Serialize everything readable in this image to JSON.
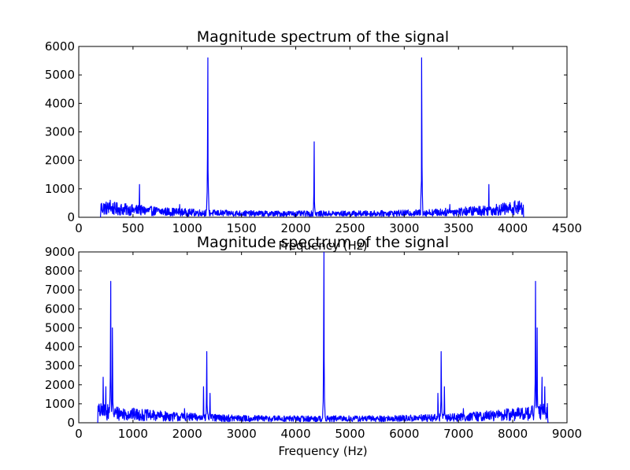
{
  "chart_data": [
    {
      "type": "line",
      "title": "Magnitude spectrum of the signal",
      "xlabel": "Frequency (Hz)",
      "ylabel": "",
      "xlim": [
        0,
        4500
      ],
      "ylim": [
        0,
        6000
      ],
      "xticks": [
        0,
        500,
        1000,
        1500,
        2000,
        2500,
        3000,
        3500,
        4000,
        4500
      ],
      "yticks": [
        0,
        1000,
        2000,
        3000,
        4000,
        5000,
        6000
      ],
      "grid": false,
      "series_color": "#0000ff",
      "x_range": [
        200,
        4100
      ],
      "noise": {
        "near_edges": 400,
        "middle": 150
      },
      "peaks": [
        {
          "x": 290,
          "y": 600
        },
        {
          "x": 560,
          "y": 1150
        },
        {
          "x": 930,
          "y": 450
        },
        {
          "x": 1190,
          "y": 5600
        },
        {
          "x": 2170,
          "y": 2650
        },
        {
          "x": 3160,
          "y": 5600
        },
        {
          "x": 3420,
          "y": 450
        },
        {
          "x": 3780,
          "y": 1150
        },
        {
          "x": 4020,
          "y": 580
        }
      ]
    },
    {
      "type": "line",
      "title": "Magnitude spectrum of the signal",
      "xlabel": "Frequency (Hz)",
      "ylabel": "",
      "xlim": [
        0,
        9000
      ],
      "ylim": [
        0,
        9000
      ],
      "xticks": [
        0,
        1000,
        2000,
        3000,
        4000,
        5000,
        6000,
        7000,
        8000,
        9000
      ],
      "yticks": [
        0,
        1000,
        2000,
        3000,
        4000,
        5000,
        6000,
        7000,
        8000,
        9000
      ],
      "grid": false,
      "series_color": "#0000ff",
      "x_range": [
        350,
        8650
      ],
      "noise": {
        "near_edges": 700,
        "middle": 250
      },
      "peaks": [
        {
          "x": 450,
          "y": 2400
        },
        {
          "x": 500,
          "y": 1900
        },
        {
          "x": 590,
          "y": 7450
        },
        {
          "x": 620,
          "y": 5000
        },
        {
          "x": 1950,
          "y": 750
        },
        {
          "x": 2300,
          "y": 1900
        },
        {
          "x": 2360,
          "y": 3750
        },
        {
          "x": 2420,
          "y": 1550
        },
        {
          "x": 4520,
          "y": 9000
        },
        {
          "x": 6620,
          "y": 1550
        },
        {
          "x": 6680,
          "y": 3750
        },
        {
          "x": 6740,
          "y": 1900
        },
        {
          "x": 7090,
          "y": 750
        },
        {
          "x": 8420,
          "y": 7450
        },
        {
          "x": 8450,
          "y": 5000
        },
        {
          "x": 8540,
          "y": 2400
        },
        {
          "x": 8590,
          "y": 1900
        }
      ]
    }
  ]
}
